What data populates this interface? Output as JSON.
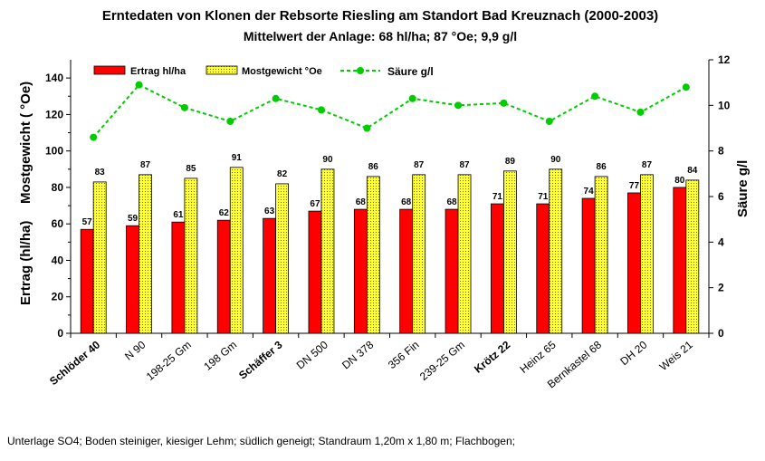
{
  "chart_data": {
    "type": "bar",
    "title": "Erntedaten von Klonen der Rebsorte Riesling am Standort Bad Kreuznach (2000-2003)",
    "subtitle": "Mittelwert der Anlage: 68 hl/ha; 87 °Oe; 9,9 g/l",
    "ylabel_left_1": "Ertrag (hl/ha)",
    "ylabel_left_2": "Mostgewicht ( °Oe)",
    "ylabel_right": "Säure g/l",
    "ylim_left": [
      0,
      150
    ],
    "yticks_left": [
      0,
      20,
      40,
      60,
      80,
      100,
      120,
      140
    ],
    "ylim_right": [
      0,
      12
    ],
    "yticks_right": [
      0,
      2,
      4,
      6,
      8,
      10,
      12
    ],
    "legend_position": "top-left",
    "grid": false,
    "categories": [
      "Schlöder 40",
      "N 90",
      "198-25 Gm",
      "198 Gm",
      "Schäffer 3",
      "DN 500",
      "DN 378",
      "356 Fin",
      "239-25 Gm",
      "Krötz 22",
      "Heinz 65",
      "Bernkastel 68",
      "DH 20",
      "Weis 21"
    ],
    "bold_categories": [
      "Schlöder 40",
      "Schäffer 3",
      "Krötz 22"
    ],
    "series": [
      {
        "name": "Ertrag hl/ha",
        "kind": "bar",
        "axis": "left",
        "color": "#ff0000",
        "values": [
          57,
          59,
          61,
          62,
          63,
          67,
          68,
          68,
          68,
          71,
          71,
          74,
          77,
          80
        ]
      },
      {
        "name": "Mostgewicht °Oe",
        "kind": "bar",
        "axis": "left",
        "color": "#ffff00",
        "values": [
          83,
          87,
          85,
          91,
          82,
          90,
          86,
          87,
          87,
          89,
          90,
          86,
          87,
          84
        ]
      },
      {
        "name": "Säure g/l",
        "kind": "line",
        "axis": "right",
        "color": "#00cc00",
        "values": [
          8.6,
          10.9,
          9.9,
          9.3,
          10.3,
          9.8,
          9.0,
          10.3,
          10.0,
          10.1,
          9.3,
          10.4,
          9.7,
          10.8
        ]
      }
    ]
  },
  "footnote": "Unterlage SO4; Boden steiniger, kiesiger Lehm; südlich geneigt;  Standraum 1,20m x 1,80 m; Flachbogen;"
}
